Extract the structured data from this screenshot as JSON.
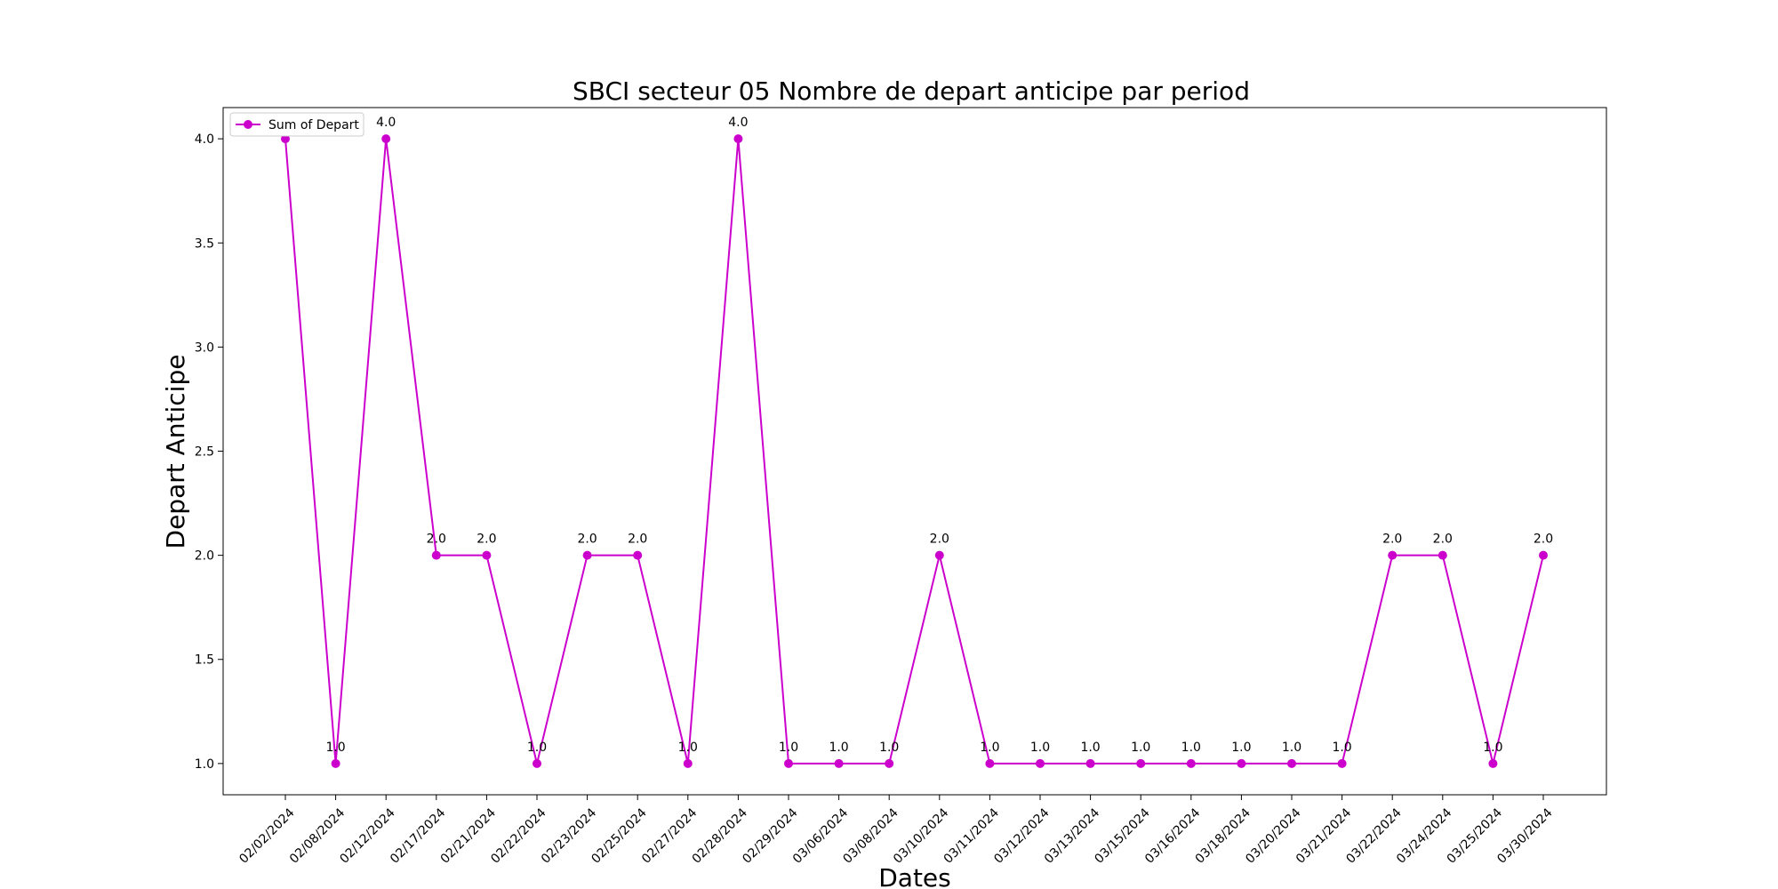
{
  "chart_data": {
    "type": "line",
    "title": "SBCI secteur 05 Nombre de depart anticipe par period",
    "xlabel": "Dates",
    "ylabel": "Depart Anticipe",
    "x": [
      "02/02/2024",
      "02/08/2024",
      "02/12/2024",
      "02/17/2024",
      "02/21/2024",
      "02/22/2024",
      "02/23/2024",
      "02/25/2024",
      "02/27/2024",
      "02/28/2024",
      "02/29/2024",
      "03/06/2024",
      "03/08/2024",
      "03/10/2024",
      "03/11/2024",
      "03/12/2024",
      "03/13/2024",
      "03/15/2024",
      "03/16/2024",
      "03/18/2024",
      "03/20/2024",
      "03/21/2024",
      "03/22/2024",
      "03/24/2024",
      "03/25/2024",
      "03/30/2024"
    ],
    "series": [
      {
        "name": "Sum of Depart",
        "color": "#cc00cc",
        "values": [
          4.0,
          1.0,
          4.0,
          2.0,
          2.0,
          1.0,
          2.0,
          2.0,
          1.0,
          4.0,
          1.0,
          1.0,
          1.0,
          2.0,
          1.0,
          1.0,
          1.0,
          1.0,
          1.0,
          1.0,
          1.0,
          1.0,
          2.0,
          2.0,
          1.0,
          2.0
        ],
        "labels": [
          "4.0",
          "1.0",
          "4.0",
          "2.0",
          "2.0",
          "1.0",
          "2.0",
          "2.0",
          "1.0",
          "4.0",
          "1.0",
          "1.0",
          "1.0",
          "2.0",
          "1.0",
          "1.0",
          "1.0",
          "1.0",
          "1.0",
          "1.0",
          "1.0",
          "1.0",
          "2.0",
          "2.0",
          "1.0",
          "2.0"
        ]
      }
    ],
    "yticks": [
      "1.0",
      "1.5",
      "2.0",
      "2.5",
      "3.0",
      "3.5",
      "4.0"
    ],
    "ylim": [
      0.85,
      4.15
    ],
    "grid": false,
    "legend_position": "top-left"
  }
}
